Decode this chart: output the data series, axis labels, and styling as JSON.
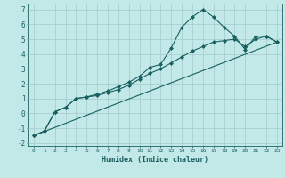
{
  "title": "",
  "xlabel": "Humidex (Indice chaleur)",
  "ylabel": "",
  "background_color": "#c2e8e8",
  "grid_color": "#a8d0d0",
  "line_color": "#1a6060",
  "xlim": [
    -0.5,
    23.5
  ],
  "ylim": [
    -2.2,
    7.4
  ],
  "xticks": [
    0,
    1,
    2,
    3,
    4,
    5,
    6,
    7,
    8,
    9,
    10,
    11,
    12,
    13,
    14,
    15,
    16,
    17,
    18,
    19,
    20,
    21,
    22,
    23
  ],
  "yticks": [
    -2,
    -1,
    0,
    1,
    2,
    3,
    4,
    5,
    6,
    7
  ],
  "series": [
    {
      "x": [
        0,
        1,
        2,
        3,
        4,
        5,
        6,
        7,
        8,
        9,
        10,
        11,
        12,
        13,
        14,
        15,
        16,
        17,
        18,
        19,
        20,
        21,
        22,
        23
      ],
      "y": [
        -1.5,
        -1.2,
        0.1,
        0.4,
        1.0,
        1.1,
        1.3,
        1.5,
        1.8,
        2.1,
        2.5,
        3.1,
        3.3,
        4.4,
        5.8,
        6.5,
        7.0,
        6.5,
        5.8,
        5.2,
        4.3,
        5.2,
        5.2,
        4.8
      ],
      "marker": "D",
      "markersize": 2.0,
      "linewidth": 0.8
    },
    {
      "x": [
        0,
        1,
        2,
        3,
        4,
        5,
        6,
        7,
        8,
        9,
        10,
        11,
        12,
        13,
        14,
        15,
        16,
        17,
        18,
        19,
        20,
        21,
        22,
        23
      ],
      "y": [
        -1.5,
        -1.2,
        0.1,
        0.4,
        1.0,
        1.1,
        1.2,
        1.4,
        1.6,
        1.9,
        2.3,
        2.7,
        3.0,
        3.4,
        3.8,
        4.2,
        4.5,
        4.8,
        4.9,
        5.0,
        4.5,
        5.0,
        5.2,
        4.8
      ],
      "marker": "D",
      "markersize": 2.0,
      "linewidth": 0.8
    },
    {
      "x": [
        0,
        23
      ],
      "y": [
        -1.5,
        4.8
      ],
      "marker": null,
      "markersize": 0,
      "linewidth": 0.8
    }
  ]
}
